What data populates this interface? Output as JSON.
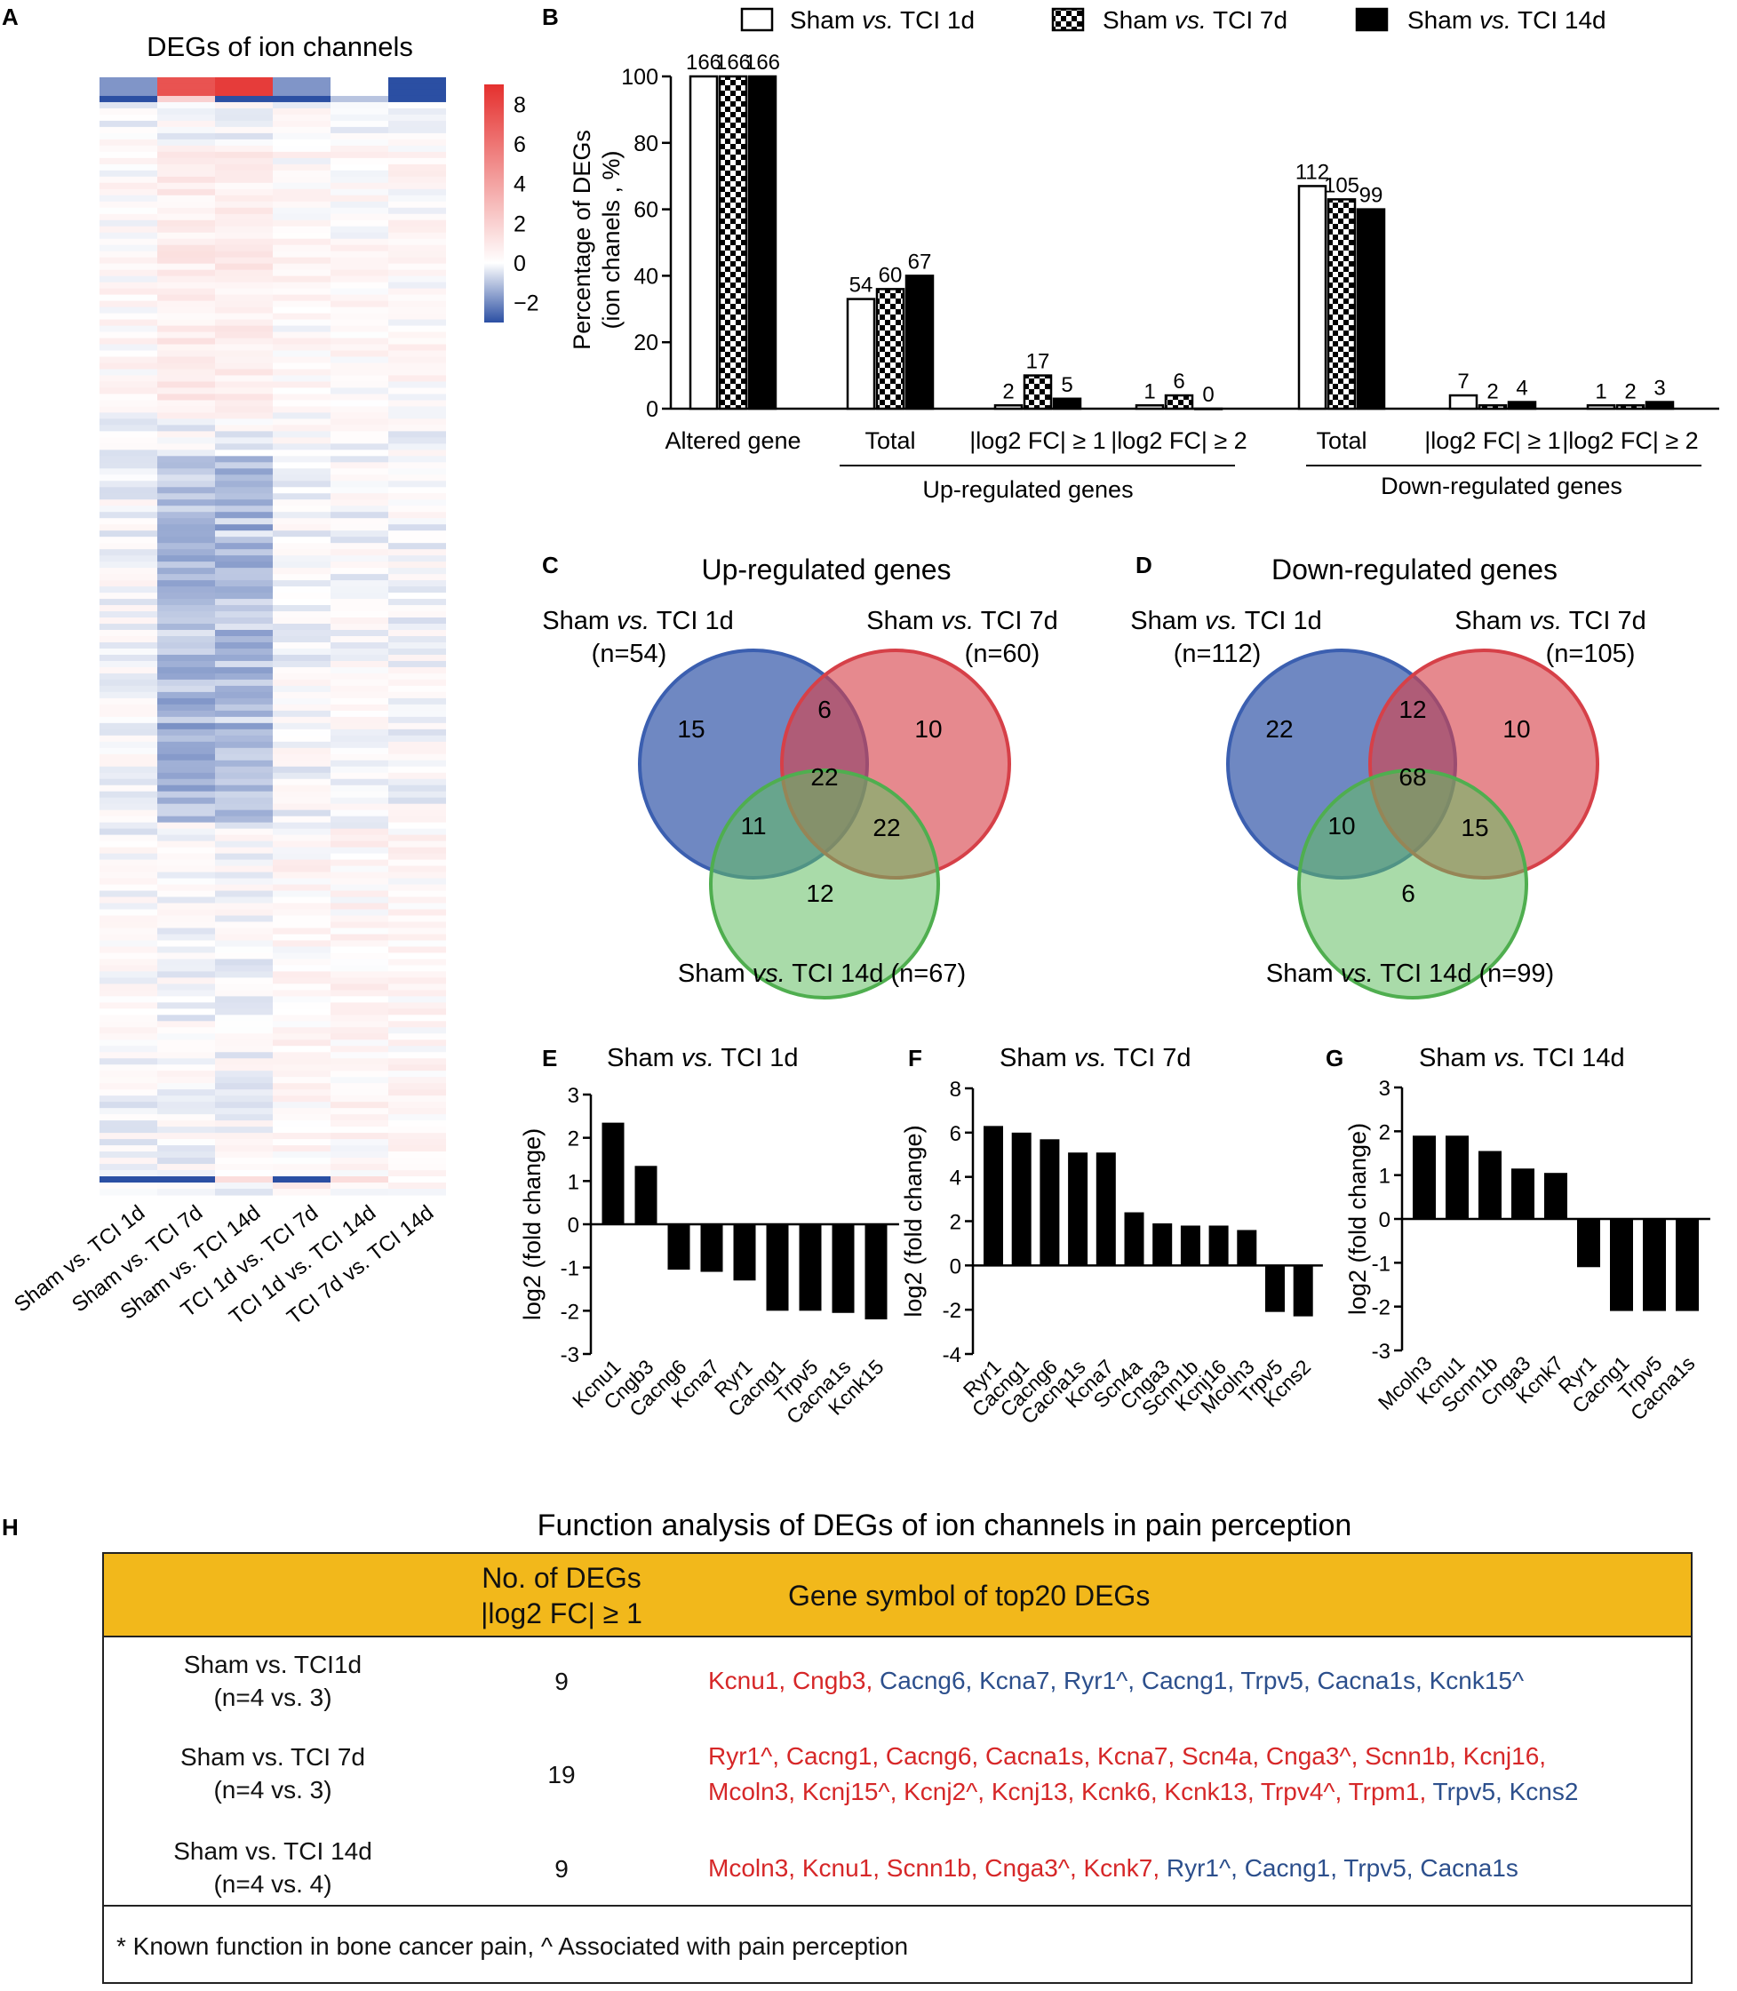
{
  "panel_letters": [
    "A",
    "B",
    "C",
    "D",
    "E",
    "F",
    "G",
    "H"
  ],
  "heatmap": {
    "title": "DEGs of ion channels",
    "columns": [
      "Sham vs. TCI 1d",
      "Sham vs. TCI 7d",
      "Sham vs. TCI 14d",
      "TCI 1d vs. TCI 7d",
      "TCI 1d vs. TCI 14d",
      "TCI 7d vs. TCI 14d"
    ],
    "colorbar_ticks": [
      "8",
      "6",
      "4",
      "2",
      "0",
      "−2"
    ],
    "colorbar_range": [
      -3,
      9
    ],
    "colors": {
      "high": "#e5302e",
      "mid": "#ffffff",
      "low": "#2b4fa3"
    }
  },
  "chart_data": [
    {
      "panel": "B",
      "type": "bar",
      "ylabel": "Percentage of DEGs (ion chanels , %)",
      "ylim": [
        0,
        100
      ],
      "yticks": [
        "0",
        "20",
        "40",
        "60",
        "80",
        "100"
      ],
      "legend": [
        "Sham vs. TCI 1d",
        "Sham vs. TCI 7d",
        "Sham vs. TCI 14d"
      ],
      "categories": [
        "Altered gene",
        "Total",
        "|log2 FC| ≥ 1",
        "|log2 FC| ≥ 2",
        "Total",
        "|log2 FC| ≥ 1",
        "|log2 FC| ≥ 2"
      ],
      "group_labels": [
        "Up-regulated genes",
        "Down-regulated genes"
      ],
      "series": [
        {
          "name": "Sham vs. TCI 1d",
          "values": [
            100,
            33,
            1,
            1,
            67,
            4,
            1
          ],
          "labels": [
            "166",
            "54",
            "2",
            "1",
            "112",
            "7",
            "1"
          ]
        },
        {
          "name": "Sham vs. TCI 7d",
          "values": [
            100,
            36,
            10,
            4,
            63,
            1,
            1
          ],
          "labels": [
            "166",
            "60",
            "17",
            "6",
            "105",
            "2",
            "2"
          ]
        },
        {
          "name": "Sham vs. TCI 14d",
          "values": [
            100,
            40,
            3,
            0,
            60,
            2,
            2
          ],
          "labels": [
            "166",
            "67",
            "5",
            "0",
            "99",
            "4",
            "3"
          ]
        }
      ]
    },
    {
      "panel": "E",
      "type": "bar",
      "title": "Sham vs. TCI 1d",
      "ylabel": "log2 (fold change)",
      "ylim": [
        -3,
        3
      ],
      "yticks": [
        "-3",
        "-2",
        "-1",
        "0",
        "1",
        "2",
        "3"
      ],
      "categories": [
        "Kcnu1",
        "Cngb3",
        "Cacng6",
        "Kcna7",
        "Ryr1",
        "Cacng1",
        "Trpv5",
        "Cacna1s",
        "Kcnk15"
      ],
      "values": [
        2.35,
        1.35,
        -1.05,
        -1.1,
        -1.3,
        -2.0,
        -2.0,
        -2.05,
        -2.2
      ]
    },
    {
      "panel": "F",
      "type": "bar",
      "title": "Sham vs. TCI 7d",
      "ylabel": "log2 (fold change)",
      "ylim": [
        -4,
        8
      ],
      "yticks": [
        "-4",
        "-2",
        "0",
        "2",
        "4",
        "6",
        "8"
      ],
      "categories": [
        "Ryr1",
        "Cacng1",
        "Cacng6",
        "Cacna1s",
        "Kcna7",
        "Scn4a",
        "Cnga3",
        "Scnn1b",
        "Kcnj16",
        "Mcoln3",
        "Trpv5",
        "Kcns2"
      ],
      "values": [
        6.3,
        6.0,
        5.7,
        5.1,
        5.1,
        2.4,
        1.9,
        1.8,
        1.8,
        1.6,
        -2.1,
        -2.3
      ]
    },
    {
      "panel": "G",
      "type": "bar",
      "title": "Sham vs. TCI 14d",
      "ylabel": "log2 (fold change)",
      "ylim": [
        -3,
        3
      ],
      "yticks": [
        "-3",
        "-2",
        "-1",
        "0",
        "1",
        "2",
        "3"
      ],
      "categories": [
        "Mcoln3",
        "Kcnu1",
        "Scnn1b",
        "Cnga3",
        "Kcnk7",
        "Ryr1",
        "Cacng1",
        "Trpv5",
        "Cacna1s"
      ],
      "values": [
        1.9,
        1.9,
        1.55,
        1.15,
        1.05,
        -1.1,
        -2.1,
        -2.1,
        -2.1
      ]
    }
  ],
  "venn_up": {
    "title": "Up-regulated genes",
    "sets": [
      {
        "name": "Sham vs. TCI 1d",
        "n": "(n=54)"
      },
      {
        "name": "Sham vs. TCI 7d",
        "n": "(n=60)"
      },
      {
        "name": "Sham vs. TCI 14d (n=67)",
        "n": ""
      }
    ],
    "regions": {
      "only_a": "15",
      "ab": "6",
      "only_b": "10",
      "abc": "22",
      "ac": "11",
      "bc": "22",
      "only_c": "12"
    }
  },
  "venn_down": {
    "title": "Down-regulated genes",
    "sets": [
      {
        "name": "Sham vs. TCI 1d",
        "n": "(n=112)"
      },
      {
        "name": "Sham vs. TCI 7d",
        "n": "(n=105)"
      },
      {
        "name": "Sham vs. TCI 14d (n=99)",
        "n": ""
      }
    ],
    "regions": {
      "only_a": "22",
      "ab": "12",
      "only_b": "10",
      "abc": "68",
      "ac": "10",
      "bc": "15",
      "only_c": "6"
    }
  },
  "table": {
    "title": "Function analysis of DEGs of ion channels in pain perception",
    "header_count_line1": "No. of DEGs",
    "header_count_line2": "|log2 FC|  ≥ 1",
    "header_genes": "Gene symbol of top20 DEGs",
    "rows": [
      {
        "group": "Sham vs. TCI1d",
        "n": "(n=4 vs. 3)",
        "count": "9",
        "up_genes": "Kcnu1, Cngb3, ",
        "down_genes": "Cacng6, Kcna7, Ryr1^, Cacng1, Trpv5, Cacna1s, Kcnk15^",
        "up_genes_2": "",
        "down_genes_2": ""
      },
      {
        "group": "Sham vs. TCI 7d",
        "n": "(n=4 vs. 3)",
        "count": "19",
        "up_genes": "Ryr1^, Cacng1, Cacng6, Cacna1s,  Kcna7, Scn4a, Cnga3^, Scnn1b, Kcnj16,",
        "down_genes": "",
        "up_genes_2": "Mcoln3, Kcnj15^, Kcnj2^, Kcnj13, Kcnk6, Kcnk13, Trpv4^, Trpm1, ",
        "down_genes_2": "Trpv5, Kcns2"
      },
      {
        "group": "Sham vs. TCI 14d",
        "n": "(n=4 vs. 4)",
        "count": "9",
        "up_genes": "Mcoln3, Kcnu1, Scnn1b, Cnga3^,  Kcnk7, ",
        "down_genes": "Ryr1^, Cacng1, Trpv5, Cacna1s",
        "up_genes_2": "",
        "down_genes_2": ""
      }
    ],
    "footnote": "* Known function in bone cancer pain, ^ Associated with pain perception",
    "colors": {
      "header_bg": "#f2b81b",
      "up": "#d62728",
      "down": "#2c4f8c"
    }
  }
}
